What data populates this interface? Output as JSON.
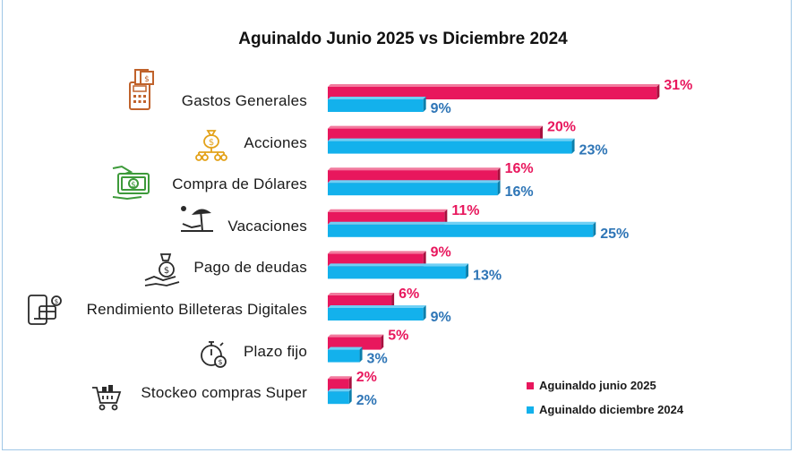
{
  "chart_data": {
    "type": "bar",
    "orientation": "horizontal",
    "title": "Aguinaldo Junio 2025 vs Diciembre 2024",
    "categories": [
      "Gastos Generales",
      "Acciones",
      "Compra de Dólares",
      "Vacaciones",
      "Pago de deudas",
      "Rendimiento Billeteras Digitales",
      "Plazo fijo",
      "Stockeo compras Super"
    ],
    "category_icons": [
      "pos-terminal-icon",
      "money-bag-network-icon",
      "cash-hand-icon",
      "beach-umbrella-icon",
      "debt-payment-hand-icon",
      "digital-wallet-icon",
      "stopwatch-money-icon",
      "shopping-cart-icon"
    ],
    "series": [
      {
        "name": "Aguinaldo junio 2025",
        "color": "#e8175d",
        "values": [
          31,
          20,
          16,
          11,
          9,
          6,
          5,
          2
        ],
        "labels": [
          "31%",
          "20%",
          "16%",
          "11%",
          "9%",
          "6%",
          "5%",
          "2%"
        ]
      },
      {
        "name": "Aguinaldo diciembre 2024",
        "color": "#13b1ec",
        "values": [
          9,
          23,
          16,
          25,
          13,
          9,
          3,
          2
        ],
        "labels": [
          "9%",
          "23%",
          "16%",
          "25%",
          "13%",
          "9%",
          "3%",
          "2%"
        ]
      }
    ],
    "label_colors": [
      "#e8175d",
      "#2e75b6"
    ],
    "xlim": [
      0,
      32
    ],
    "grid": false,
    "legend_position": "bottom-right"
  }
}
